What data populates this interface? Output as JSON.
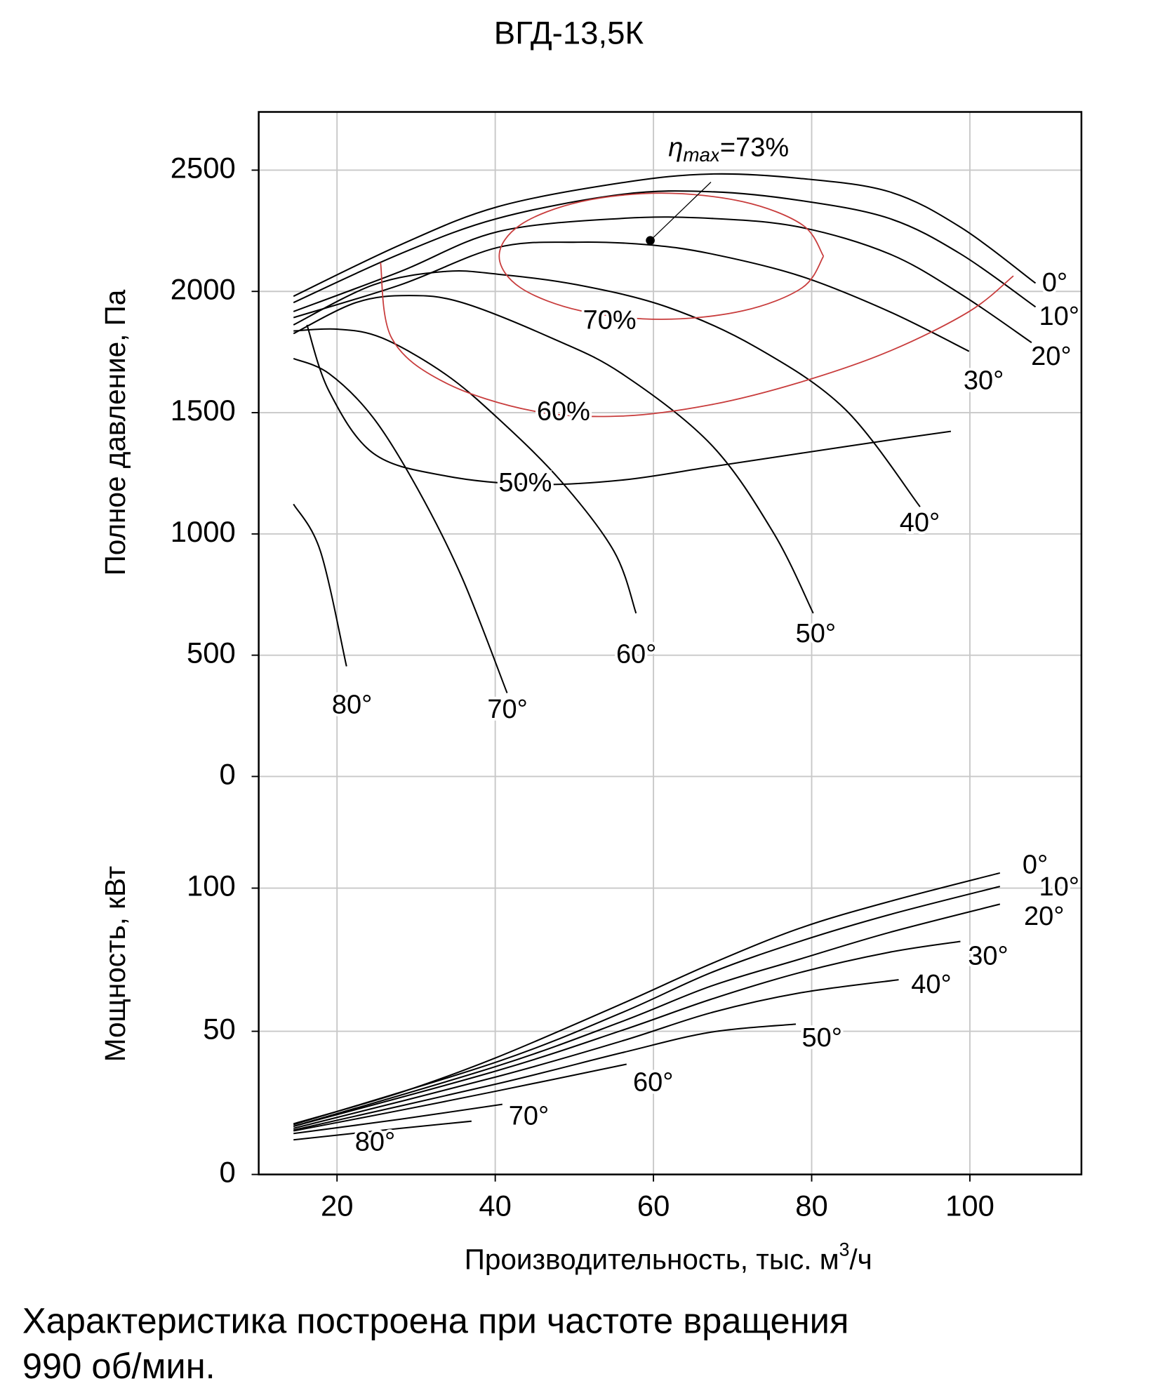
{
  "chart_data": [
    {
      "type": "line",
      "title": "ВГД-13,5К",
      "ylabel": "Полное давление, Па",
      "xlim": [
        10.1,
        114.1
      ],
      "ylim": [
        0,
        2740
      ],
      "xticks": [
        20,
        40,
        60,
        80,
        100
      ],
      "yticks": [
        0,
        500,
        1000,
        1500,
        2000,
        2500
      ],
      "grid": true,
      "series": [
        {
          "name": "0°",
          "color": "#000000",
          "x": [
            14.5,
            28,
            40.3,
            56,
            67.3,
            78.5,
            89.8,
            98.8,
            108.3
          ],
          "values": [
            1980,
            2192,
            2349,
            2448,
            2484,
            2466,
            2411,
            2265,
            2034
          ]
        },
        {
          "name": "10°",
          "color": "#000000",
          "x": [
            14.5,
            28,
            40.3,
            56,
            67.3,
            78.5,
            89.8,
            98.8,
            108.3
          ],
          "values": [
            1954,
            2155,
            2301,
            2400,
            2411,
            2375,
            2301,
            2155,
            1936
          ]
        },
        {
          "name": "20°",
          "color": "#000000",
          "x": [
            14.5,
            28,
            40.3,
            56,
            67.3,
            78.5,
            89.8,
            98.8,
            107.8
          ],
          "values": [
            1917,
            2082,
            2246,
            2301,
            2301,
            2265,
            2155,
            1990,
            1789
          ]
        },
        {
          "name": "30°",
          "color": "#000000",
          "x": [
            14.5,
            28,
            40.3,
            50.4,
            59.4,
            67.3,
            78.5,
            89.8,
            99.9
          ],
          "values": [
            1892,
            2027,
            2181,
            2203,
            2192,
            2155,
            2064,
            1917,
            1753
          ]
        },
        {
          "name": "40°",
          "color": "#000000",
          "x": [
            14.5,
            24.6,
            33.6,
            40.3,
            50.4,
            61.7,
            72.9,
            84.2,
            93.7
          ],
          "values": [
            1862,
            2027,
            2082,
            2071,
            2027,
            1936,
            1771,
            1515,
            1112
          ]
        },
        {
          "name": "50°",
          "color": "#000000",
          "x": [
            14.5,
            22.4,
            29.1,
            35.8,
            47.1,
            56,
            67.3,
            75.2,
            80.2
          ],
          "values": [
            1826,
            1954,
            1983,
            1954,
            1808,
            1661,
            1368,
            1003,
            673
          ]
        },
        {
          "name": "60°",
          "color": "#000000",
          "x": [
            14.5,
            20.1,
            25.7,
            33.6,
            40.3,
            48.2,
            55,
            57.8
          ],
          "values": [
            1837,
            1844,
            1808,
            1661,
            1478,
            1222,
            929,
            673
          ]
        },
        {
          "name": "70°",
          "color": "#000000",
          "x": [
            14.5,
            19,
            24.6,
            30.2,
            35.8,
            41.5
          ],
          "values": [
            1723,
            1661,
            1478,
            1185,
            820,
            344
          ]
        },
        {
          "name": "80°",
          "color": "#000000",
          "x": [
            14.5,
            17.9,
            21.2
          ],
          "values": [
            1123,
            929,
            454
          ]
        },
        {
          "name": "70%",
          "color": "#c83c3c",
          "x": [
            81.5,
            78.8,
            71.3,
            61,
            50.8,
            43.2,
            40.5,
            43.2,
            50.8,
            61,
            71.3,
            78.8,
            81.5
          ],
          "values": [
            2145,
            2275,
            2370,
            2405,
            2370,
            2275,
            2145,
            2015,
            1920,
            1885,
            1920,
            2015,
            2145
          ]
        },
        {
          "name": "60%",
          "color": "#c83c3c",
          "x": [
            25.5,
            26.9,
            33.6,
            44.8,
            56,
            67.3,
            78.5,
            89.8,
            99.9,
            105.5
          ],
          "values": [
            2119,
            1808,
            1625,
            1507,
            1486,
            1533,
            1625,
            1753,
            1917,
            2064
          ]
        },
        {
          "name": "50%",
          "color": "#000000",
          "x": [
            16.2,
            19,
            24.6,
            33.6,
            44.8,
            56,
            67.3,
            78.5,
            89.8,
            97.6
          ],
          "values": [
            1862,
            1588,
            1332,
            1240,
            1204,
            1222,
            1277,
            1332,
            1387,
            1423
          ]
        }
      ],
      "annotation": {
        "x": 59.6,
        "y": 2210,
        "symbol": "η",
        "subscript": "max",
        "text": "=73%"
      }
    },
    {
      "type": "line",
      "ylabel": "Мощность, кВт",
      "xlabel": "Производительность, тыс. м",
      "xlabel_sup": "3",
      "xlabel_end": "/ч",
      "xlim": [
        10.1,
        114.1
      ],
      "ylim": [
        0,
        139
      ],
      "xticks": [
        20,
        40,
        60,
        80,
        100
      ],
      "yticks": [
        0,
        50,
        100
      ],
      "grid": true,
      "series": [
        {
          "name": "0°",
          "color": "#000000",
          "x": [
            14.5,
            28,
            40.3,
            56,
            67.3,
            78.5,
            89.8,
            103.8
          ],
          "values": [
            17.7,
            28.6,
            41,
            59.6,
            73.6,
            86,
            95.3,
            105.3
          ]
        },
        {
          "name": "10°",
          "color": "#000000",
          "x": [
            14.5,
            40.3,
            56,
            67.3,
            78.5,
            89.8,
            103.8
          ],
          "values": [
            17.4,
            39.4,
            56.5,
            70.5,
            81.4,
            90.7,
            100.6
          ]
        },
        {
          "name": "20°",
          "color": "#000000",
          "x": [
            14.5,
            40.3,
            56,
            67.3,
            78.5,
            89.8,
            103.8
          ],
          "values": [
            16.8,
            37.9,
            53.4,
            65.8,
            75.2,
            84.5,
            94.4
          ]
        },
        {
          "name": "30°",
          "color": "#000000",
          "x": [
            14.5,
            40.3,
            56,
            67.3,
            78.5,
            89.8,
            98.8
          ],
          "values": [
            16.8,
            36.3,
            50.3,
            61.2,
            70.5,
            77.6,
            81.4
          ]
        },
        {
          "name": "40°",
          "color": "#000000",
          "x": [
            14.5,
            40.3,
            56,
            67.3,
            78.5,
            91
          ],
          "values": [
            16.1,
            34.2,
            46.6,
            56.5,
            63.4,
            68
          ]
        },
        {
          "name": "50°",
          "color": "#000000",
          "x": [
            14.5,
            40.3,
            56,
            67.3,
            78
          ],
          "values": [
            15.5,
            31.7,
            42.5,
            49.7,
            52.5
          ]
        },
        {
          "name": "60°",
          "color": "#000000",
          "x": [
            14.5,
            28,
            40.3,
            56.6
          ],
          "values": [
            15.2,
            22.4,
            29.2,
            38.5
          ]
        },
        {
          "name": "70°",
          "color": "#000000",
          "x": [
            14.5,
            28,
            40.9
          ],
          "values": [
            14.3,
            19.3,
            24.5
          ]
        },
        {
          "name": "80°",
          "color": "#000000",
          "x": [
            14.5,
            28,
            37
          ],
          "values": [
            12.1,
            16.1,
            18.6
          ]
        }
      ]
    }
  ],
  "footnote": [
    "Характеристика построена при частоте вращения",
    "990 об/мин."
  ]
}
